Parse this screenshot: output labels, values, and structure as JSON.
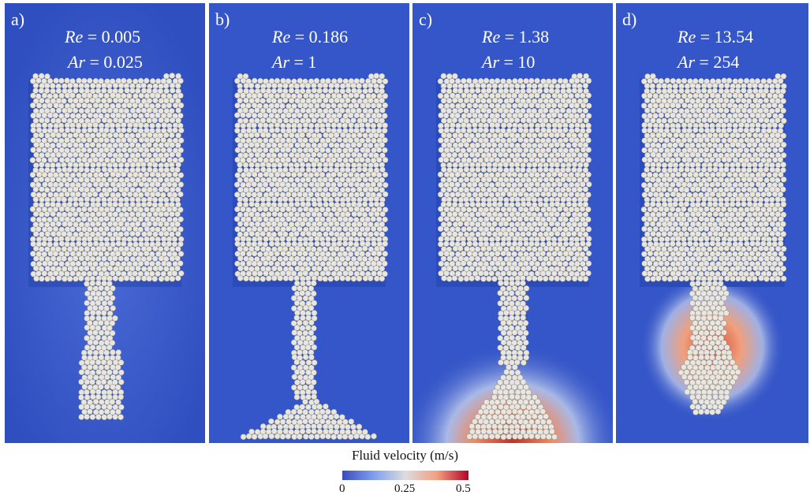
{
  "panels": [
    {
      "letter": "a)",
      "re_sym": "Re",
      "re_val": " = 0.005",
      "ar_sym": "Ar",
      "ar_val": " = 0.025"
    },
    {
      "letter": "b)",
      "re_sym": "Re",
      "re_val": " = 0.186",
      "ar_sym": "Ar",
      "ar_val": " = 1"
    },
    {
      "letter": "c)",
      "re_sym": "Re",
      "re_val": " = 1.38",
      "ar_sym": "Ar",
      "ar_val": " = 10"
    },
    {
      "letter": "d)",
      "re_sym": "Re",
      "re_val": " = 13.54",
      "ar_sym": "Ar",
      "ar_val": " = 254"
    }
  ],
  "colorbar": {
    "title": "Fluid velocity (m/s)",
    "ticks": [
      "0",
      "0.25",
      "0.5"
    ],
    "colors": {
      "low": "#3b4cc0",
      "mid": "#dddcdc",
      "high": "#b40426"
    }
  },
  "colors": {
    "background": "#3a57c4",
    "particle": "#e8e6df"
  }
}
